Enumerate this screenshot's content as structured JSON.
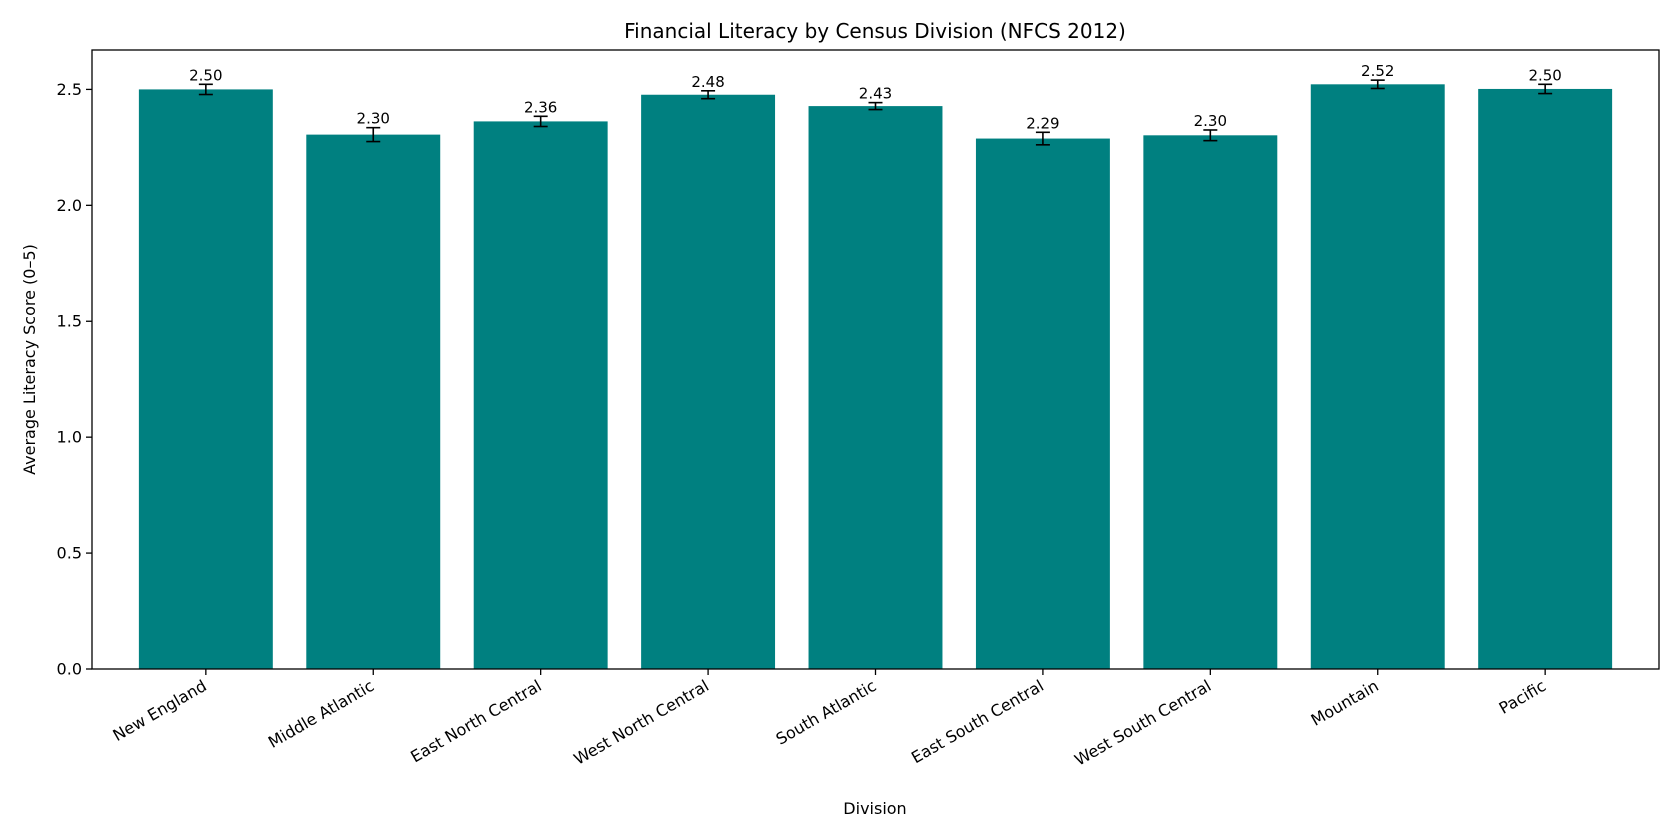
{
  "chart_data": {
    "type": "bar",
    "title": "Financial Literacy by Census Division (NFCS 2012)",
    "xlabel": "Division",
    "ylabel": "Average Literacy Score (0–5)",
    "categories": [
      "New England",
      "Middle Atlantic",
      "East North Central",
      "West North Central",
      "South Atlantic",
      "East South Central",
      "West South Central",
      "Mountain",
      "Pacific"
    ],
    "values": [
      2.5,
      2.305,
      2.362,
      2.477,
      2.428,
      2.288,
      2.302,
      2.522,
      2.502
    ],
    "value_labels": [
      "2.50",
      "2.30",
      "2.36",
      "2.48",
      "2.43",
      "2.29",
      "2.30",
      "2.52",
      "2.50"
    ],
    "errors": [
      0.022,
      0.03,
      0.022,
      0.017,
      0.015,
      0.027,
      0.023,
      0.018,
      0.02
    ],
    "ylim": [
      0,
      2.67
    ],
    "yticks": [
      0.0,
      0.5,
      1.0,
      1.5,
      2.0,
      2.5
    ],
    "ytick_labels": [
      "0.0",
      "0.5",
      "1.0",
      "1.5",
      "2.0",
      "2.5"
    ],
    "grid": false,
    "bar_color": "#008080",
    "errorbar_color": "#000000"
  }
}
